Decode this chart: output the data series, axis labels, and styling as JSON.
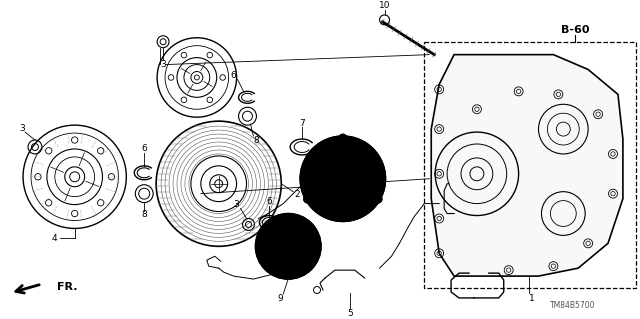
{
  "bg_color": "#ffffff",
  "line_color": "#000000",
  "gray": "#888888",
  "darkgray": "#444444",
  "label_color": "#000000",
  "watermark": "TM84B5700",
  "label_B60": "B-60",
  "label_FR": "FR.",
  "parts": {
    "1_label": "1",
    "2_label": "2",
    "3_label": "3",
    "4_label": "4",
    "5_label": "5",
    "6_label": "6",
    "7_label": "7",
    "8_label": "8",
    "9_label": "9",
    "10_label": "10"
  }
}
